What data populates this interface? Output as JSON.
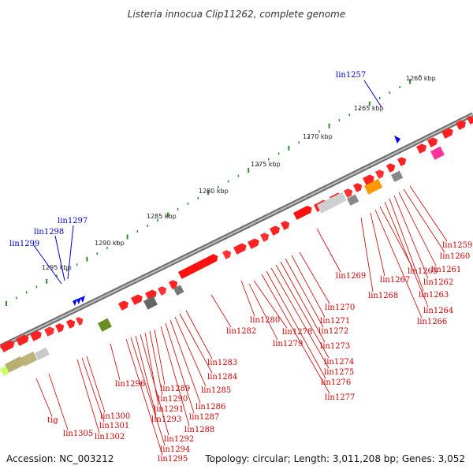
{
  "header": {
    "title": "Listeria innocua Clip11262, complete genome"
  },
  "footer": {
    "accession": "Accession: NC_003212",
    "summary": "Topology: circular; Length: 3,011,208 bp; Genes: 3,052"
  },
  "scale_ticks": [
    "1260 kbp",
    "1265 kbp",
    "1270 kbp",
    "1275 kbp",
    "1280 kbp",
    "1285 kbp",
    "1290 kbp",
    "1295 kbp"
  ],
  "colors": {
    "backbone": "#7a7a7a",
    "forward_gene": "#ff0000",
    "reverse_feature": "#0000ff",
    "label_red": "#cc0000",
    "label_blue": "#0000cc",
    "tick": "#2e8b2e"
  },
  "forward_labels": [
    "lin1299",
    "lin1298",
    "lin1297",
    "lin1257"
  ],
  "reverse_labels": [
    "lin1259",
    "lin1260",
    "lin1261",
    "lin1262",
    "lin1263",
    "lin1264",
    "lin1265",
    "lin1266",
    "lin1267",
    "lin1268",
    "lin1269",
    "lin1270",
    "lin1271",
    "lin1272",
    "lin1273",
    "lin1274",
    "lin1275",
    "lin1276",
    "lin1277",
    "lin1278",
    "lin1279",
    "lin1280",
    "lin1282",
    "lin1283",
    "lin1284",
    "lin1285",
    "lin1286",
    "lin1287",
    "lin1288",
    "lin1289",
    "lin1290",
    "lin1291",
    "lin1292",
    "lin1293",
    "lin1294",
    "lin1295",
    "lin1296",
    "lin1300",
    "lin1301",
    "lin1302",
    "lin1305",
    "tig"
  ]
}
